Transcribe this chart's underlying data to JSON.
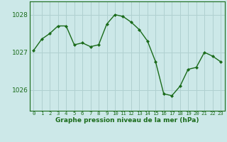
{
  "x": [
    0,
    1,
    2,
    3,
    4,
    5,
    6,
    7,
    8,
    9,
    10,
    11,
    12,
    13,
    14,
    15,
    16,
    17,
    18,
    19,
    20,
    21,
    22,
    23
  ],
  "y": [
    1027.05,
    1027.35,
    1027.5,
    1027.7,
    1027.7,
    1027.2,
    1027.25,
    1027.15,
    1027.2,
    1027.75,
    1028.0,
    1027.95,
    1027.8,
    1027.6,
    1027.3,
    1026.75,
    1025.9,
    1025.85,
    1026.1,
    1026.55,
    1026.6,
    1027.0,
    1026.9,
    1026.75
  ],
  "line_color": "#1a6b1a",
  "marker_color": "#1a6b1a",
  "bg_color": "#cce8e8",
  "grid_color": "#b0d0d0",
  "axis_color": "#1a6b1a",
  "xlabel": "Graphe pression niveau de la mer (hPa)",
  "yticks": [
    1026,
    1027,
    1028
  ],
  "ylim": [
    1025.45,
    1028.35
  ],
  "xlim": [
    -0.5,
    23.5
  ],
  "spine_color": "#1a6b1a"
}
